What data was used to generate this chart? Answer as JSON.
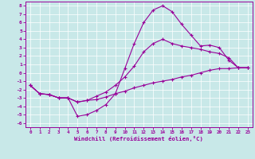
{
  "xlabel": "Windchill (Refroidissement éolien,°C)",
  "bg_color": "#c8e8e8",
  "line_color": "#990099",
  "xlim": [
    -0.5,
    23.5
  ],
  "ylim": [
    -6.5,
    8.5
  ],
  "yticks": [
    -6,
    -5,
    -4,
    -3,
    -2,
    -1,
    0,
    1,
    2,
    3,
    4,
    5,
    6,
    7,
    8
  ],
  "xticks": [
    0,
    1,
    2,
    3,
    4,
    5,
    6,
    7,
    8,
    9,
    10,
    11,
    12,
    13,
    14,
    15,
    16,
    17,
    18,
    19,
    20,
    21,
    22,
    23
  ],
  "line1_x": [
    0,
    1,
    2,
    3,
    4,
    5,
    6,
    7,
    8,
    9,
    10,
    11,
    12,
    13,
    14,
    15,
    16,
    17,
    18,
    19,
    20,
    21,
    22,
    23
  ],
  "line1_y": [
    -1.5,
    -2.5,
    -2.6,
    -3.0,
    -3.0,
    -3.5,
    -3.3,
    -3.2,
    -2.9,
    -2.5,
    -2.2,
    -1.8,
    -1.5,
    -1.2,
    -1.0,
    -0.8,
    -0.5,
    -0.3,
    0.0,
    0.3,
    0.5,
    0.5,
    0.6,
    0.6
  ],
  "line2_x": [
    0,
    1,
    2,
    3,
    4,
    5,
    6,
    7,
    8,
    9,
    10,
    11,
    12,
    13,
    14,
    15,
    16,
    17,
    18,
    19,
    20,
    21,
    22,
    23
  ],
  "line2_y": [
    -1.5,
    -2.5,
    -2.6,
    -3.0,
    -3.0,
    -5.2,
    -5.0,
    -4.5,
    -3.8,
    -2.5,
    0.5,
    3.5,
    6.0,
    7.5,
    8.0,
    7.3,
    5.8,
    4.5,
    3.2,
    3.3,
    3.0,
    1.5,
    0.6,
    0.6
  ],
  "line3_x": [
    0,
    1,
    2,
    3,
    4,
    5,
    6,
    7,
    8,
    9,
    10,
    11,
    12,
    13,
    14,
    15,
    16,
    17,
    18,
    19,
    20,
    21,
    22,
    23
  ],
  "line3_y": [
    -1.5,
    -2.5,
    -2.6,
    -3.0,
    -3.0,
    -3.5,
    -3.3,
    -2.8,
    -2.3,
    -1.5,
    -0.5,
    0.8,
    2.5,
    3.5,
    4.0,
    3.5,
    3.2,
    3.0,
    2.8,
    2.5,
    2.3,
    1.8,
    0.6,
    0.6
  ]
}
